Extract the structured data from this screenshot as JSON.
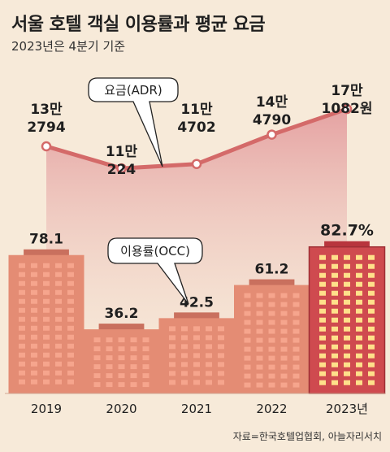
{
  "title": "서울 호텔 객실 이용률과 평균 요금",
  "subtitle": "2023년은 4분기 기준",
  "source": "자료=한국호텔업협회, 아늘자리서치",
  "colors": {
    "background": "#f7ead9",
    "bar": "#e48c74",
    "bar_top": "#c9705e",
    "bar_highlight": "#cf4a4f",
    "window": "#f6a58d",
    "window_highlight": "#ffe08a",
    "line": "#d46a69",
    "area": "#e8a6a6"
  },
  "chart_data": {
    "type": "bar",
    "categories": [
      "2019",
      "2020",
      "2021",
      "2022",
      "2023년"
    ],
    "series": [
      {
        "name": "이용률(OCC)",
        "type": "bar",
        "values": [
          78.1,
          36.2,
          42.5,
          61.2,
          82.7
        ],
        "labels": [
          "78.1",
          "36.2",
          "42.5",
          "61.2",
          "82.7%"
        ]
      },
      {
        "name": "요금(ADR)",
        "type": "line",
        "values": [
          132794,
          110224,
          114702,
          144790,
          171082
        ],
        "labels": [
          [
            "13만",
            "2794"
          ],
          [
            "11만",
            "224"
          ],
          [
            "11만",
            "4702"
          ],
          [
            "14만",
            "4790"
          ],
          [
            "17만",
            "1082원"
          ]
        ]
      }
    ]
  }
}
